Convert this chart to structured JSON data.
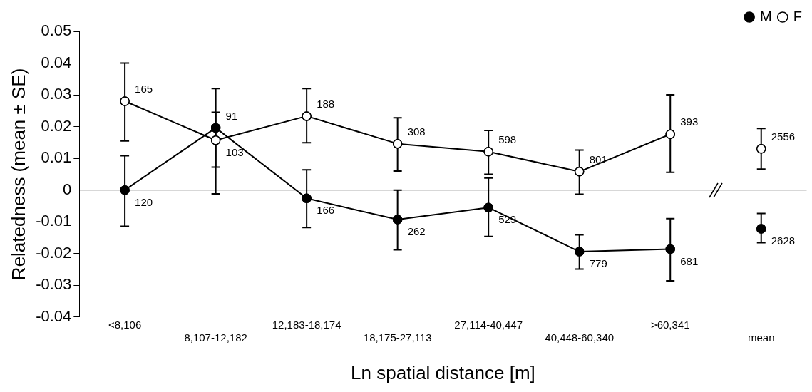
{
  "chart_data": {
    "type": "line",
    "xlabel": "Ln spatial distance [m]",
    "ylabel": "Relatedness (mean ± SE)",
    "categories": [
      "<8,106",
      "8,107-12,182",
      "12,183-18,174",
      "18,175-27,113",
      "27,114-40,447",
      "40,448-60,340",
      ">60,341",
      "mean"
    ],
    "series": [
      {
        "name": "M",
        "color": "#000000",
        "values": [
          0,
          0.0196,
          -0.0026,
          -0.0093,
          -0.0055,
          -0.0194,
          -0.0186,
          null
        ],
        "errors": [
          [
            -0.0114,
            0.0108
          ],
          [
            -0.0012,
            0.032
          ],
          [
            -0.0118,
            0.0064
          ],
          [
            -0.0188,
            0
          ],
          [
            -0.0146,
            0.0038
          ],
          [
            -0.0249,
            -0.0141
          ],
          [
            -0.0286,
            -0.009
          ],
          null
        ]
      },
      {
        "name": "F",
        "color": "#ffffff",
        "values": [
          0.028,
          0.0157,
          0.0233,
          0.0146,
          0.0121,
          0.0058,
          0.0176,
          null
        ],
        "errors": [
          [
            0.0155,
            0.04
          ],
          [
            0.0072,
            0.0245
          ],
          [
            0.0149,
            0.032
          ],
          [
            0.006,
            0.0228
          ],
          [
            0.005,
            0.0188
          ],
          [
            -0.0013,
            0.0126
          ],
          [
            0.0056,
            0.03
          ],
          null
        ]
      },
      {
        "type": "scatter",
        "color": "#000000",
        "x": [
          "mean"
        ],
        "values": [
          -0.0122
        ],
        "errors": [
          [
            -0.0166,
            -0.0074
          ]
        ]
      },
      {
        "type": "scatter",
        "color": "#ffffff",
        "x": [
          "mean"
        ],
        "values": [
          0.013
        ],
        "errors": [
          [
            0.0066,
            0.0194
          ]
        ]
      }
    ],
    "annotations": [
      {
        "text": "120",
        "x": "<8,106",
        "y": 0
      },
      {
        "text": "165",
        "x": "<8,106",
        "y": 0.028
      },
      {
        "text": "91",
        "x": "8,107-12,182",
        "y": 0.0196
      },
      {
        "text": "103",
        "x": "8,107-12,182",
        "y": 0.0157
      },
      {
        "text": "166",
        "x": "12,183-18,174",
        "y": -0.0026
      },
      {
        "text": "188",
        "x": "12,183-18,174",
        "y": 0.0233
      },
      {
        "text": "262",
        "x": "18,175-27,113",
        "y": -0.0093
      },
      {
        "text": "308",
        "x": "18,175-27,113",
        "y": 0.0146
      },
      {
        "text": "529",
        "x": "27,114-40,447",
        "y": -0.0055
      },
      {
        "text": "598",
        "x": "27,114-40,447",
        "y": 0.0121
      },
      {
        "text": "779",
        "x": "40,448-60,340",
        "y": -0.0194
      },
      {
        "text": "801",
        "x": "40,448-60,340",
        "y": 0.0058
      },
      {
        "text": "681",
        "x": ">60,341",
        "y": -0.0186
      },
      {
        "text": "393",
        "x": ">60,341",
        "y": 0.0176
      },
      {
        "text": "2628",
        "x": "mean",
        "y": -0.0122
      },
      {
        "text": "2556",
        "x": "mean",
        "y": 0.013
      }
    ],
    "ylim": [
      -0.04,
      0.05
    ],
    "yticks": [
      -0.04,
      -0.03,
      -0.02,
      -0.01,
      0,
      0.01,
      0.02,
      0.03,
      0.04,
      0.05
    ],
    "ref_lines": [
      {
        "axis": "y",
        "value": 0
      }
    ],
    "grid": false,
    "legend": "top right",
    "marker": "circle",
    "line_style": "solid"
  }
}
